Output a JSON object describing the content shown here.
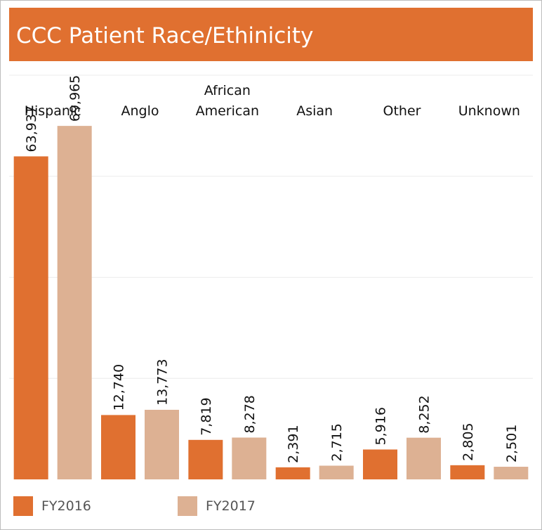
{
  "header": {
    "title": "CCC Patient Race/Ethinicity"
  },
  "colors": {
    "header_bg": "#e07030",
    "fy2016": "#e07030",
    "fy2017": "#ddb193",
    "gridline": "#ececec"
  },
  "chart_data": {
    "type": "bar",
    "title": "CCC Patient Race/Ethinicity",
    "categories": [
      [
        "Hispanic"
      ],
      [
        "Anglo"
      ],
      [
        "African",
        "American"
      ],
      [
        "Asian"
      ],
      [
        "Other"
      ],
      [
        "Unknown"
      ]
    ],
    "series": [
      {
        "name": "FY2016",
        "values": [
          63937,
          12740,
          7819,
          2391,
          5916,
          2805
        ],
        "labels": [
          "63,937",
          "12,740",
          "7,819",
          "2,391",
          "5,916",
          "2,805"
        ]
      },
      {
        "name": "FY2017",
        "values": [
          69965,
          13773,
          8278,
          2715,
          8252,
          2501
        ],
        "labels": [
          "69,965",
          "13,773",
          "8,278",
          "2,715",
          "8,252",
          "2,501"
        ]
      }
    ],
    "ylim": [
      0,
      80000
    ],
    "gridlines": [
      20000,
      40000,
      60000,
      80000
    ],
    "legend_position": "bottom-left",
    "grid": true
  },
  "legend": [
    {
      "label": "FY2016",
      "color": "#e07030"
    },
    {
      "label": "FY2017",
      "color": "#ddb193"
    }
  ]
}
